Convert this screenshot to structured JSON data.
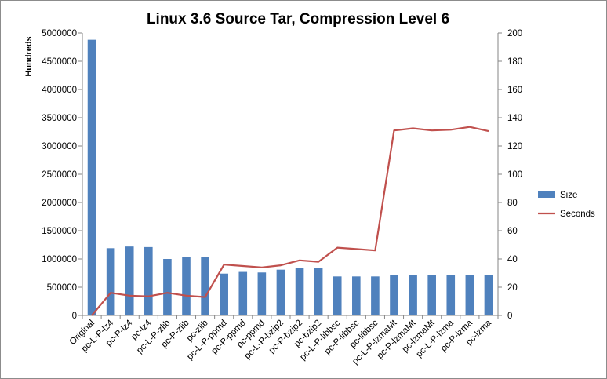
{
  "chart_data": {
    "type": "bar+line",
    "title": "Linux 3.6 Source Tar, Compression Level 6",
    "ylabel_left": "Hundreds",
    "ylim_left": [
      0,
      5000000
    ],
    "yticks_left": [
      "0",
      "500000",
      "1000000",
      "1500000",
      "2000000",
      "2500000",
      "3000000",
      "3500000",
      "4000000",
      "4500000",
      "5000000"
    ],
    "ylim_right": [
      0,
      200
    ],
    "yticks_right": [
      "0",
      "20",
      "40",
      "60",
      "80",
      "100",
      "120",
      "140",
      "160",
      "180",
      "200"
    ],
    "categories": [
      "Original",
      "pc-L-P-lz4",
      "pc-P-lz4",
      "pc-lz4",
      "pc-L-P-zlib",
      "pc-P-zlib",
      "pc-zlib",
      "pc-L-P-ppmd",
      "pc-P-ppmd",
      "pc-ppmd",
      "pc-L-P-bzip2",
      "pc-P-bzip2",
      "pc-bzip2",
      "pc-L-P-libbsc",
      "pc-P-libbsc",
      "pc-libbsc",
      "pc-L-P-lzmaMt",
      "pc-P-lzmaMt",
      "pc-lzmaMt",
      "pc-L-P-lzma",
      "pc-P-lzma",
      "pc-lzma"
    ],
    "series": [
      {
        "name": "Size",
        "kind": "bar",
        "axis": "left",
        "color": "#4f81bd",
        "values": [
          4880000,
          1190000,
          1220000,
          1210000,
          1000000,
          1040000,
          1040000,
          740000,
          770000,
          760000,
          810000,
          840000,
          840000,
          690000,
          690000,
          690000,
          720000,
          720000,
          720000,
          720000,
          720000,
          720000
        ]
      },
      {
        "name": "Seconds",
        "kind": "line",
        "axis": "right",
        "color": "#c0504d",
        "values": [
          0,
          16,
          14,
          13.5,
          16,
          14,
          13,
          36,
          35,
          34,
          35.5,
          39,
          38,
          48,
          47,
          46,
          131,
          132.5,
          131,
          131.5,
          133.5,
          130.5
        ]
      }
    ],
    "grid": false,
    "legend": "right"
  }
}
